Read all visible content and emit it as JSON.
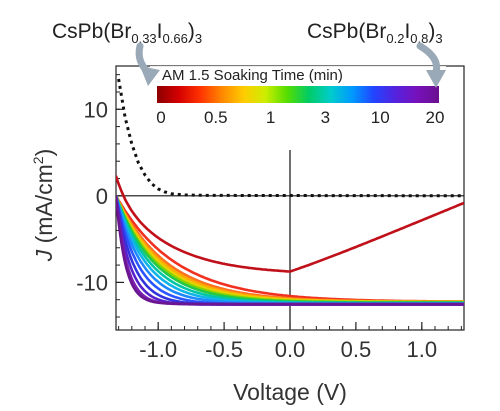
{
  "chart_data": {
    "type": "line",
    "title": "",
    "xlabel": "Voltage (V)",
    "ylabel_italic": "J",
    "ylabel_rest": " (mA/cm",
    "ylabel_sup": "2",
    "ylabel_close": ")",
    "xlim": [
      -1.32,
      1.32
    ],
    "ylim": [
      -15.5,
      15.0
    ],
    "x_ticks": [
      -1.0,
      -0.5,
      0.0,
      0.5,
      1.0
    ],
    "x_tick_labels": [
      "-1.0",
      "-0.5",
      "0.0",
      "0.5",
      "1.0"
    ],
    "y_ticks": [
      -10,
      0,
      10
    ],
    "y_tick_labels": [
      "-10",
      "0",
      "10"
    ],
    "x_minor_step": 0.1,
    "y_minor_step": 2,
    "zero_lines": true,
    "grid": false,
    "annotations": {
      "left_formula": {
        "prefix": "CsPb(Br",
        "sub1": "0.33",
        "mid": "I",
        "sub2": "0.66",
        "suffix": ")",
        "sub3": "3"
      },
      "right_formula": {
        "prefix": "CsPb(Br",
        "sub1": "0.2",
        "mid": "I",
        "sub2": "0.8",
        "suffix": ")",
        "sub3": "3"
      }
    },
    "colorbar": {
      "title": "AM 1.5 Soaking Time (min)",
      "tick_labels": [
        "0",
        "0.5",
        "1",
        "3",
        "10",
        "20"
      ],
      "placement": "top-right",
      "colors": [
        "#8c0000",
        "#d40000",
        "#ff3300",
        "#ff8800",
        "#ffcc00",
        "#ccee00",
        "#55dd00",
        "#00cc66",
        "#00cccc",
        "#0099ff",
        "#2244ff",
        "#5522dd",
        "#7711bb",
        "#6a0f8e"
      ]
    },
    "dark_series": {
      "style": "dotted",
      "color": "#111111",
      "points": [
        [
          -1.3,
          13.5
        ],
        [
          -1.25,
          9.0
        ],
        [
          -1.2,
          6.0
        ],
        [
          -1.15,
          3.8
        ],
        [
          -1.1,
          2.4
        ],
        [
          -1.05,
          1.4
        ],
        [
          -1.0,
          0.8
        ],
        [
          -0.95,
          0.45
        ],
        [
          -0.9,
          0.25
        ],
        [
          -0.8,
          0.1
        ],
        [
          -0.6,
          0.05
        ],
        [
          1.3,
          0.0
        ]
      ]
    },
    "series": [
      {
        "color": "#c0101a",
        "voc": 1.3,
        "isc": 8.3,
        "k": 0.8
      },
      {
        "color": "#f03020",
        "voc": 1.2,
        "isc": 12.2,
        "k": 2.2
      },
      {
        "color": "#ff7020",
        "voc": 0.95,
        "isc": 12.2,
        "k": 2.6
      },
      {
        "color": "#ffaa00",
        "voc": 0.7,
        "isc": 12.2,
        "k": 2.8
      },
      {
        "color": "#e6d200",
        "voc": 0.45,
        "isc": 12.2,
        "k": 3.0
      },
      {
        "color": "#88d400",
        "voc": 0.2,
        "isc": 12.2,
        "k": 3.2
      },
      {
        "color": "#22c84a",
        "voc": 0.0,
        "isc": 12.2,
        "k": 3.4
      },
      {
        "color": "#00c6a6",
        "voc": -0.2,
        "isc": 12.2,
        "k": 3.8
      },
      {
        "color": "#10b4e8",
        "voc": -0.38,
        "isc": 12.2,
        "k": 4.3
      },
      {
        "color": "#1e88ff",
        "voc": -0.55,
        "isc": 12.2,
        "k": 5.0
      },
      {
        "color": "#2a55ff",
        "voc": -0.72,
        "isc": 12.2,
        "k": 6.0
      },
      {
        "color": "#3333dd",
        "voc": -0.85,
        "isc": 12.2,
        "k": 7.5
      },
      {
        "color": "#5522cc",
        "voc": -0.95,
        "isc": 12.2,
        "k": 9.5
      },
      {
        "color": "#7a1fb0",
        "voc": -1.02,
        "isc": 12.2,
        "k": 12
      },
      {
        "color": "#6a1690",
        "voc": -1.05,
        "isc": 12.2,
        "k": 14
      }
    ]
  }
}
